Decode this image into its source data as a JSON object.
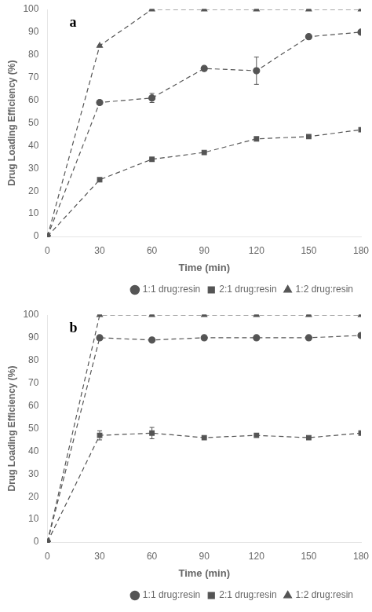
{
  "chart_data": [
    {
      "type": "line",
      "annotations": [
        "a"
      ],
      "xlabel": "Time (min)",
      "ylabel": "Drug Loading Efficiency (%)",
      "x": [
        0,
        30,
        60,
        90,
        120,
        150,
        180
      ],
      "series": [
        {
          "name": "1:1 drug:resin",
          "color": "#555555",
          "marker": "circle",
          "line_style": "dashed",
          "values": [
            0,
            59,
            61,
            74,
            73,
            88,
            90
          ],
          "yerr": [
            0,
            0,
            2,
            0,
            6,
            0,
            0
          ]
        },
        {
          "name": "2:1 drug:resin",
          "color": "#555555",
          "marker": "square",
          "line_style": "dashed",
          "values": [
            0,
            25,
            34,
            37,
            43,
            44,
            47
          ],
          "yerr": [
            0,
            0,
            0,
            0,
            0,
            0,
            0
          ]
        },
        {
          "name": "1:2 drug:resin",
          "color": "#555555",
          "marker": "triangle",
          "line_style": "dashed",
          "values": [
            0,
            84,
            100,
            100,
            100,
            100,
            100
          ],
          "yerr": [
            0,
            0,
            0,
            0,
            0,
            0,
            0
          ]
        }
      ],
      "xlim": [
        0,
        180
      ],
      "ylim": [
        0,
        100
      ],
      "xticks": [
        0,
        30,
        60,
        90,
        120,
        150,
        180
      ],
      "yticks": [
        0,
        10,
        20,
        30,
        40,
        50,
        60,
        70,
        80,
        90,
        100
      ],
      "grid": false,
      "legend": "lower right"
    },
    {
      "type": "line",
      "annotations": [
        "b"
      ],
      "xlabel": "Time (min)",
      "ylabel": "Drug Loading Efficiency (%)",
      "x": [
        0,
        30,
        60,
        90,
        120,
        150,
        180
      ],
      "series": [
        {
          "name": "1:1 drug:resin",
          "color": "#555555",
          "marker": "circle",
          "line_style": "dashed",
          "values": [
            0,
            90,
            89,
            90,
            90,
            90,
            91
          ],
          "yerr": [
            0,
            0,
            0,
            0,
            0,
            0,
            0
          ]
        },
        {
          "name": "2:1 drug:resin",
          "color": "#555555",
          "marker": "square",
          "line_style": "dashed",
          "values": [
            0,
            47,
            48,
            46,
            47,
            46,
            48
          ],
          "yerr": [
            0,
            2,
            2.5,
            0,
            0,
            0,
            0
          ]
        },
        {
          "name": "1:2 drug:resin",
          "color": "#555555",
          "marker": "triangle",
          "line_style": "dashed",
          "values": [
            0,
            100,
            100,
            100,
            100,
            100,
            100
          ],
          "yerr": [
            0,
            0,
            0,
            0,
            0,
            0,
            0
          ]
        }
      ],
      "xlim": [
        0,
        180
      ],
      "ylim": [
        0,
        100
      ],
      "xticks": [
        0,
        30,
        60,
        90,
        120,
        150,
        180
      ],
      "yticks": [
        0,
        10,
        20,
        30,
        40,
        50,
        60,
        70,
        80,
        90,
        100
      ],
      "grid": false,
      "legend": "lower right"
    }
  ]
}
